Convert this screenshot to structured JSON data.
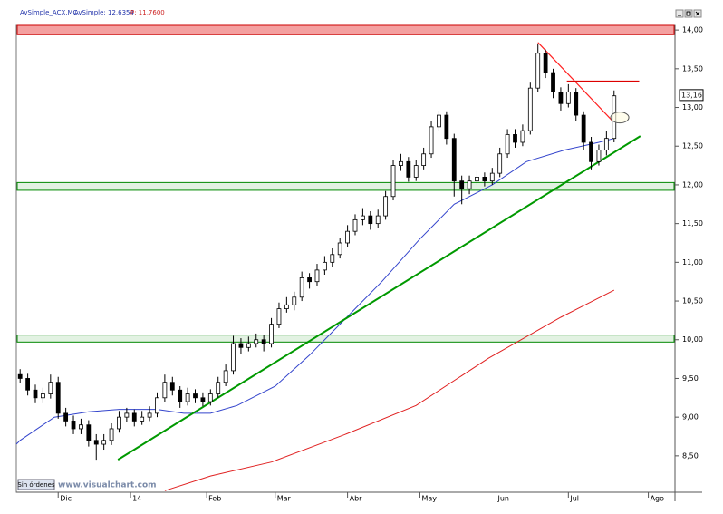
{
  "chart_data": {
    "type": "candlestick",
    "title": "AvSimple_ACX.MC",
    "indicator_1": "AvSimple: 12,6354",
    "indicator_2": "P: 11,7600",
    "watermark": "www.visualchart.com",
    "button": "Sin órdenes",
    "last_price": {
      "value": 13.16,
      "label": "13,16"
    },
    "color_up": "#ffffff",
    "color_down": "#000000",
    "xlim": [
      -1,
      172
    ],
    "ylim": [
      8.03,
      14.06
    ],
    "xticks": [
      {
        "value": 10,
        "label": "Dic"
      },
      {
        "value": 29,
        "label": "14"
      },
      {
        "value": 49,
        "label": "Feb"
      },
      {
        "value": 67,
        "label": "Mar"
      },
      {
        "value": 86,
        "label": "Abr"
      },
      {
        "value": 105,
        "label": "May"
      },
      {
        "value": 125,
        "label": "Jun"
      },
      {
        "value": 144,
        "label": "Jul"
      },
      {
        "value": 165,
        "label": "Ago"
      }
    ],
    "yticks": [
      {
        "value": 8.5,
        "label": "8,50"
      },
      {
        "value": 9,
        "label": "9,00"
      },
      {
        "value": 9.5,
        "label": "9,50"
      },
      {
        "value": 10,
        "label": "10,00"
      },
      {
        "value": 10.5,
        "label": "10,50"
      },
      {
        "value": 11,
        "label": "11,00"
      },
      {
        "value": 11.5,
        "label": "11,50"
      },
      {
        "value": 12,
        "label": "12,00"
      },
      {
        "value": 12.5,
        "label": "12,50"
      },
      {
        "value": 13,
        "label": "13,00"
      },
      {
        "value": 13.5,
        "label": "13,50"
      },
      {
        "value": 14,
        "label": "14,00"
      }
    ],
    "x": [
      0,
      2,
      4,
      6,
      8,
      10,
      12,
      14,
      16,
      18,
      20,
      22,
      24,
      26,
      28,
      30,
      32,
      34,
      36,
      38,
      40,
      42,
      44,
      46,
      48,
      50,
      52,
      54,
      56,
      58,
      60,
      62,
      64,
      66,
      68,
      70,
      72,
      74,
      76,
      78,
      80,
      82,
      84,
      86,
      88,
      90,
      92,
      94,
      96,
      98,
      100,
      102,
      104,
      106,
      108,
      110,
      112,
      114,
      116,
      118,
      120,
      122,
      124,
      126,
      128,
      130,
      132,
      134,
      136,
      138,
      140,
      142,
      144,
      146,
      148,
      150,
      152,
      154,
      156
    ],
    "open": [
      9.55,
      9.5,
      9.35,
      9.25,
      9.3,
      9.45,
      9.05,
      8.95,
      8.85,
      8.9,
      8.7,
      8.65,
      8.7,
      8.85,
      9.0,
      9.05,
      8.95,
      9.0,
      9.05,
      9.25,
      9.45,
      9.35,
      9.2,
      9.3,
      9.25,
      9.2,
      9.3,
      9.45,
      9.6,
      9.95,
      9.9,
      9.95,
      10.0,
      9.95,
      10.2,
      10.4,
      10.45,
      10.55,
      10.8,
      10.75,
      10.9,
      11.0,
      11.1,
      11.25,
      11.4,
      11.55,
      11.6,
      11.5,
      11.6,
      11.85,
      12.25,
      12.3,
      12.1,
      12.25,
      12.4,
      12.75,
      12.9,
      12.6,
      12.05,
      11.95,
      12.05,
      12.1,
      12.05,
      12.15,
      12.4,
      12.65,
      12.55,
      12.7,
      13.25,
      13.7,
      13.45,
      13.2,
      13.05,
      13.2,
      12.9,
      12.55,
      12.3,
      12.45,
      12.6
    ],
    "high": [
      9.62,
      9.56,
      9.42,
      9.38,
      9.55,
      9.52,
      9.12,
      9.02,
      8.98,
      8.96,
      8.78,
      8.78,
      8.92,
      9.08,
      9.12,
      9.1,
      9.08,
      9.14,
      9.32,
      9.55,
      9.52,
      9.4,
      9.38,
      9.36,
      9.32,
      9.36,
      9.52,
      9.68,
      10.05,
      10.02,
      10.04,
      10.08,
      10.06,
      10.28,
      10.48,
      10.55,
      10.62,
      10.88,
      10.86,
      10.98,
      11.08,
      11.18,
      11.32,
      11.48,
      11.62,
      11.7,
      11.66,
      11.68,
      11.92,
      12.32,
      12.4,
      12.36,
      12.32,
      12.48,
      12.82,
      12.96,
      12.95,
      12.66,
      12.12,
      12.12,
      12.18,
      12.16,
      12.22,
      12.48,
      12.72,
      12.72,
      12.78,
      13.32,
      13.82,
      13.75,
      13.5,
      13.26,
      13.3,
      13.25,
      12.95,
      12.62,
      12.52,
      12.7,
      13.22
    ],
    "low": [
      9.44,
      9.28,
      9.18,
      9.18,
      9.24,
      8.98,
      8.88,
      8.78,
      8.78,
      8.62,
      8.45,
      8.58,
      8.64,
      8.8,
      8.94,
      8.88,
      8.9,
      8.95,
      9.0,
      9.2,
      9.28,
      9.12,
      9.15,
      9.18,
      9.14,
      9.15,
      9.25,
      9.4,
      9.55,
      9.82,
      9.85,
      9.9,
      9.85,
      9.9,
      10.15,
      10.35,
      10.38,
      10.5,
      10.66,
      10.7,
      10.84,
      10.94,
      11.05,
      11.2,
      11.35,
      11.48,
      11.42,
      11.44,
      11.55,
      11.8,
      12.18,
      12.04,
      12.05,
      12.2,
      12.35,
      12.7,
      12.52,
      11.85,
      11.75,
      11.88,
      12.0,
      11.98,
      12.0,
      12.1,
      12.35,
      12.48,
      12.5,
      12.65,
      13.2,
      13.38,
      13.12,
      12.96,
      13.0,
      12.82,
      12.45,
      12.2,
      12.25,
      12.38,
      12.55
    ],
    "close": [
      9.5,
      9.35,
      9.25,
      9.3,
      9.45,
      9.05,
      8.95,
      8.85,
      8.9,
      8.7,
      8.65,
      8.7,
      8.85,
      9.0,
      9.05,
      8.95,
      9.0,
      9.05,
      9.25,
      9.45,
      9.35,
      9.2,
      9.3,
      9.25,
      9.2,
      9.3,
      9.45,
      9.6,
      9.95,
      9.9,
      9.95,
      10.0,
      9.95,
      10.2,
      10.4,
      10.45,
      10.55,
      10.8,
      10.75,
      10.9,
      11.0,
      11.1,
      11.25,
      11.4,
      11.55,
      11.6,
      11.5,
      11.6,
      11.85,
      12.25,
      12.3,
      12.1,
      12.25,
      12.4,
      12.75,
      12.9,
      12.6,
      12.05,
      11.95,
      12.05,
      12.1,
      12.05,
      12.15,
      12.4,
      12.65,
      12.55,
      12.7,
      13.25,
      13.7,
      13.45,
      13.2,
      13.05,
      13.2,
      12.9,
      12.55,
      12.3,
      12.45,
      12.6,
      13.15
    ],
    "lines": [
      {
        "color": "#3344cc",
        "x": [
          -1,
          0,
          9,
          18,
          26,
          36,
          43,
          50,
          57,
          67,
          76,
          86,
          95,
          105,
          114,
          124,
          133,
          143,
          152,
          156
        ],
        "values": [
          8.65,
          8.7,
          9.0,
          9.07,
          9.1,
          9.1,
          9.05,
          9.05,
          9.15,
          9.4,
          9.8,
          10.3,
          10.75,
          11.3,
          11.75,
          12.0,
          12.3,
          12.45,
          12.55,
          12.6
        ]
      },
      {
        "color": "#e02020",
        "x": [
          38,
          50,
          66,
          85,
          104,
          123,
          142,
          156
        ],
        "values": [
          8.05,
          8.24,
          8.42,
          8.77,
          9.15,
          9.76,
          10.29,
          10.64
        ]
      }
    ],
    "trendlines": [
      {
        "color": "#009900",
        "x": [
          25.7,
          162.9
        ],
        "y": [
          8.45,
          12.63
        ]
      },
      {
        "color": "#ff2020",
        "x": [
          136,
          155.5
        ],
        "y": [
          13.84,
          12.83
        ]
      },
      {
        "color": "#dd0000",
        "x": [
          143.6,
          162.6
        ],
        "y": [
          13.34,
          13.34
        ]
      }
    ],
    "zones": [
      {
        "color": "#f4a0a0",
        "border": "#cc0000",
        "y": [
          13.94,
          14.06
        ]
      },
      {
        "color": "#e2f2e2",
        "border": "#008800",
        "y": [
          11.93,
          12.03
        ]
      },
      {
        "color": "#e2f2e2",
        "border": "#008800",
        "y": [
          9.97,
          10.06
        ]
      }
    ],
    "ellipse": {
      "x": 157.5,
      "y": 12.87
    }
  }
}
